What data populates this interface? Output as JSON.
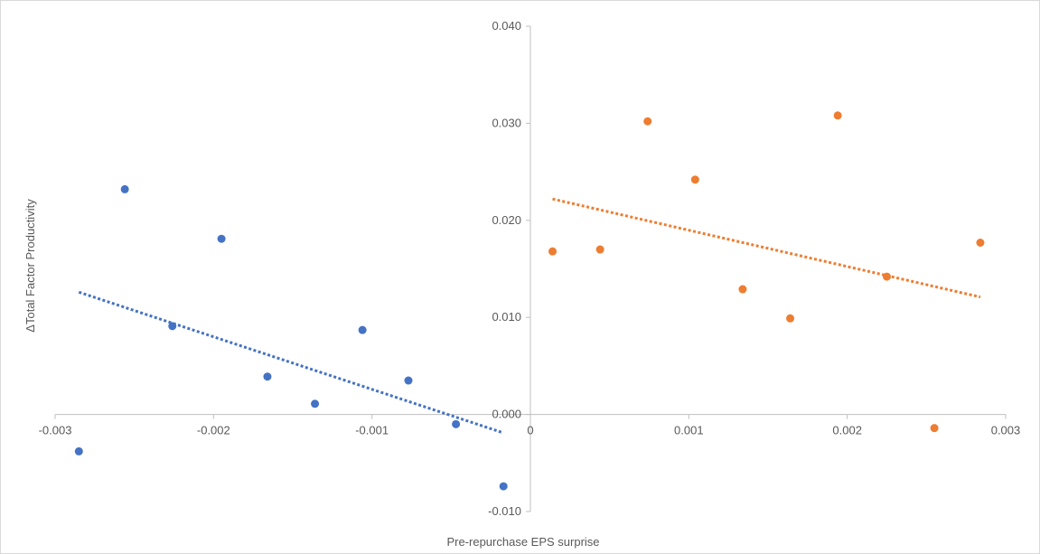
{
  "chart_data": {
    "type": "scatter",
    "title": "",
    "xlabel": "Pre-repurchase  EPS  surprise",
    "ylabel": "ΔTotal Factor Productivity",
    "xlim": [
      -0.003,
      0.003
    ],
    "ylim": [
      -0.01,
      0.04
    ],
    "x_ticks": [
      -0.003,
      -0.002,
      -0.001,
      0,
      0.001,
      0.002,
      0.003
    ],
    "x_tick_labels": [
      "-0.003",
      "-0.002",
      "-0.001",
      "0",
      "0.001",
      "0.002",
      "0.003"
    ],
    "y_ticks": [
      -0.01,
      0.0,
      0.01,
      0.02,
      0.03,
      0.04
    ],
    "y_tick_labels": [
      "-0.010",
      "0.000",
      "0.010",
      "0.020",
      "0.030",
      "0.040"
    ],
    "grid": false,
    "legend": "none",
    "series": [
      {
        "color": "#4472C4",
        "trendline": "linear",
        "points": [
          {
            "x": -0.00285,
            "y": -0.0038
          },
          {
            "x": -0.00256,
            "y": 0.0232
          },
          {
            "x": -0.00226,
            "y": 0.0091
          },
          {
            "x": -0.00195,
            "y": 0.0181
          },
          {
            "x": -0.00166,
            "y": 0.0039
          },
          {
            "x": -0.00136,
            "y": 0.0011
          },
          {
            "x": -0.00106,
            "y": 0.0087
          },
          {
            "x": -0.00077,
            "y": 0.0035
          },
          {
            "x": -0.00047,
            "y": -0.001
          },
          {
            "x": -0.00017,
            "y": -0.0074
          }
        ],
        "trend": {
          "x": [
            -0.00285,
            -0.00017
          ],
          "y": [
            0.0126,
            -0.0019
          ]
        }
      },
      {
        "color": "#ED7D31",
        "trendline": "linear",
        "points": [
          {
            "x": 0.00014,
            "y": 0.0168
          },
          {
            "x": 0.00044,
            "y": 0.017
          },
          {
            "x": 0.00074,
            "y": 0.0302
          },
          {
            "x": 0.00104,
            "y": 0.0242
          },
          {
            "x": 0.00134,
            "y": 0.0129
          },
          {
            "x": 0.00164,
            "y": 0.0099
          },
          {
            "x": 0.00194,
            "y": 0.0308
          },
          {
            "x": 0.00225,
            "y": 0.0142
          },
          {
            "x": 0.00255,
            "y": -0.0014
          },
          {
            "x": 0.00284,
            "y": 0.0177
          }
        ],
        "trend": {
          "x": [
            0.00014,
            0.00284
          ],
          "y": [
            0.0222,
            0.0121
          ]
        }
      }
    ]
  }
}
